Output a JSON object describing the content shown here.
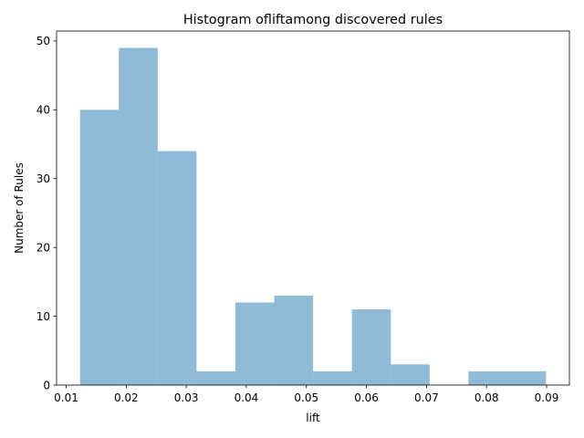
{
  "chart_data": {
    "type": "bar",
    "title": "Histogram ofliftamong discovered rules",
    "xlabel": "lift",
    "ylabel": "Number of Rules",
    "bin_edges": [
      0.0123,
      0.01877,
      0.02524,
      0.03171,
      0.03818,
      0.04465,
      0.05112,
      0.05759,
      0.06406,
      0.07053,
      0.077,
      0.08347,
      0.0899
    ],
    "values": [
      40,
      49,
      34,
      2,
      12,
      13,
      2,
      11,
      3,
      0,
      2,
      2
    ],
    "xlim": [
      0.0084,
      0.0938
    ],
    "ylim": [
      0,
      51.45
    ],
    "xticks": [
      "0.01",
      "0.02",
      "0.03",
      "0.04",
      "0.05",
      "0.06",
      "0.07",
      "0.08",
      "0.09"
    ],
    "xtick_values": [
      0.01,
      0.02,
      0.03,
      0.04,
      0.05,
      0.06,
      0.07,
      0.08,
      0.09
    ],
    "yticks": [
      "0",
      "10",
      "20",
      "30",
      "40",
      "50"
    ],
    "ytick_values": [
      0,
      10,
      20,
      30,
      40,
      50
    ],
    "bar_color": "#1f77b4",
    "bar_opacity": 0.5,
    "grid": false,
    "legend": "none"
  }
}
